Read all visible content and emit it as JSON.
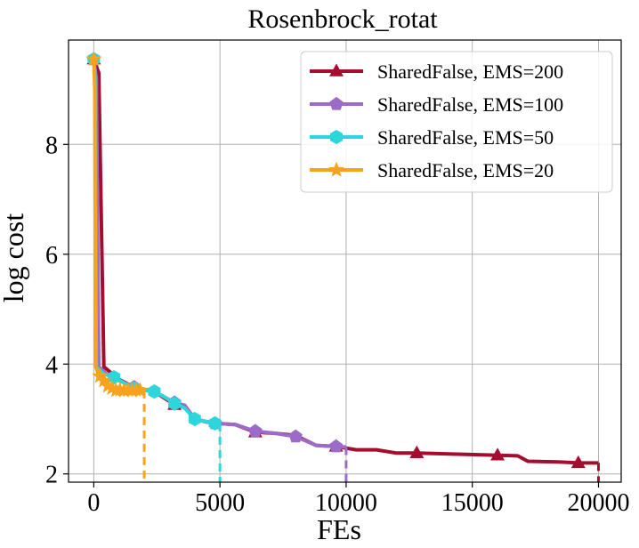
{
  "chart_data": {
    "type": "line",
    "title": "Rosenbrock_rotat",
    "xlabel": "FEs",
    "ylabel": "log cost",
    "xlim": [
      -1000,
      20900
    ],
    "ylim": [
      1.85,
      9.9
    ],
    "xticks": [
      0,
      5000,
      10000,
      15000,
      20000
    ],
    "yticks": [
      2,
      4,
      6,
      8
    ],
    "xtick_labels": [
      "0",
      "5000",
      "10000",
      "15000",
      "20000"
    ],
    "ytick_labels": [
      "2",
      "4",
      "6",
      "8"
    ],
    "grid": true,
    "legend_position": "top-right",
    "series": [
      {
        "name": "SharedFalse, EMS=200",
        "color": "#a50d2e",
        "marker": "triangle",
        "end_x": 20000,
        "points": [
          [
            0,
            9.55
          ],
          [
            200,
            9.3
          ],
          [
            400,
            3.95
          ],
          [
            1000,
            3.72
          ],
          [
            1600,
            3.58
          ],
          [
            2400,
            3.5
          ],
          [
            3200,
            3.26
          ],
          [
            3600,
            3.25
          ],
          [
            4000,
            3.0
          ],
          [
            4800,
            2.92
          ],
          [
            5600,
            2.9
          ],
          [
            6400,
            2.76
          ],
          [
            7200,
            2.74
          ],
          [
            8000,
            2.7
          ],
          [
            8800,
            2.52
          ],
          [
            9600,
            2.5
          ],
          [
            10400,
            2.44
          ],
          [
            11200,
            2.44
          ],
          [
            12000,
            2.38
          ],
          [
            12800,
            2.38
          ],
          [
            13600,
            2.37
          ],
          [
            14400,
            2.36
          ],
          [
            15200,
            2.35
          ],
          [
            16000,
            2.34
          ],
          [
            16800,
            2.33
          ],
          [
            17200,
            2.23
          ],
          [
            18400,
            2.22
          ],
          [
            19200,
            2.2
          ],
          [
            20000,
            2.2
          ]
        ],
        "markers": [
          [
            0,
            9.55
          ],
          [
            3200,
            3.26
          ],
          [
            6400,
            2.76
          ],
          [
            9600,
            2.5
          ],
          [
            12800,
            2.38
          ],
          [
            16000,
            2.34
          ],
          [
            19200,
            2.2
          ]
        ]
      },
      {
        "name": "SharedFalse, EMS=100",
        "color": "#9b6bc8",
        "marker": "pentagon",
        "end_x": 10000,
        "points": [
          [
            0,
            9.55
          ],
          [
            100,
            9.2
          ],
          [
            200,
            3.95
          ],
          [
            500,
            3.82
          ],
          [
            1000,
            3.7
          ],
          [
            1600,
            3.58
          ],
          [
            2400,
            3.5
          ],
          [
            3200,
            3.3
          ],
          [
            3600,
            3.25
          ],
          [
            4000,
            3.0
          ],
          [
            4400,
            2.95
          ],
          [
            4800,
            2.92
          ],
          [
            5600,
            2.9
          ],
          [
            6400,
            2.78
          ],
          [
            7200,
            2.74
          ],
          [
            8000,
            2.68
          ],
          [
            8800,
            2.52
          ],
          [
            9600,
            2.5
          ],
          [
            10000,
            2.49
          ]
        ],
        "markers": [
          [
            0,
            9.55
          ],
          [
            1600,
            3.58
          ],
          [
            3200,
            3.3
          ],
          [
            4800,
            2.92
          ],
          [
            6400,
            2.78
          ],
          [
            8000,
            2.68
          ],
          [
            9600,
            2.5
          ]
        ]
      },
      {
        "name": "SharedFalse, EMS=50",
        "color": "#2ed6dc",
        "marker": "hexagon",
        "end_x": 5000,
        "points": [
          [
            0,
            9.55
          ],
          [
            50,
            9.2
          ],
          [
            100,
            3.95
          ],
          [
            400,
            3.82
          ],
          [
            800,
            3.76
          ],
          [
            1200,
            3.66
          ],
          [
            1600,
            3.56
          ],
          [
            2000,
            3.52
          ],
          [
            2400,
            3.5
          ],
          [
            2800,
            3.4
          ],
          [
            3200,
            3.28
          ],
          [
            3600,
            3.2
          ],
          [
            4000,
            3.0
          ],
          [
            4400,
            2.96
          ],
          [
            4800,
            2.92
          ],
          [
            5000,
            2.92
          ]
        ],
        "markers": [
          [
            0,
            9.55
          ],
          [
            800,
            3.76
          ],
          [
            1600,
            3.56
          ],
          [
            2400,
            3.5
          ],
          [
            3200,
            3.28
          ],
          [
            4000,
            3.0
          ],
          [
            4800,
            2.92
          ]
        ]
      },
      {
        "name": "SharedFalse, EMS=20",
        "color": "#f9a21e",
        "marker": "star",
        "end_x": 2000,
        "points": [
          [
            0,
            9.55
          ],
          [
            40,
            9.0
          ],
          [
            80,
            3.95
          ],
          [
            200,
            3.8
          ],
          [
            400,
            3.7
          ],
          [
            560,
            3.58
          ],
          [
            720,
            3.55
          ],
          [
            880,
            3.52
          ],
          [
            1040,
            3.53
          ],
          [
            1200,
            3.52
          ],
          [
            1360,
            3.53
          ],
          [
            1520,
            3.52
          ],
          [
            1680,
            3.53
          ],
          [
            1840,
            3.52
          ],
          [
            2000,
            3.52
          ]
        ],
        "markers": [
          [
            0,
            9.55
          ],
          [
            240,
            3.78
          ],
          [
            400,
            3.7
          ],
          [
            560,
            3.6
          ],
          [
            720,
            3.56
          ],
          [
            880,
            3.52
          ],
          [
            1040,
            3.53
          ],
          [
            1200,
            3.52
          ],
          [
            1360,
            3.53
          ],
          [
            1520,
            3.52
          ],
          [
            1680,
            3.53
          ],
          [
            1840,
            3.52
          ]
        ]
      }
    ]
  }
}
